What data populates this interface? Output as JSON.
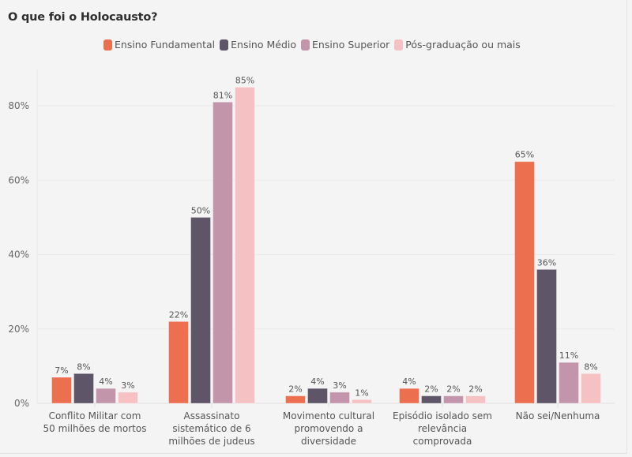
{
  "title": "O que foi o Holocausto?",
  "chart_data": {
    "type": "bar",
    "title": "O que foi o Holocausto?",
    "xlabel": "",
    "ylabel": "",
    "ylim": [
      0,
      88
    ],
    "yticks": [
      0,
      20,
      40,
      60,
      80
    ],
    "ytick_labels": [
      "0%",
      "20%",
      "40%",
      "60%",
      "80%"
    ],
    "grid": true,
    "legend_position": "top-center",
    "categories": [
      [
        "Conflito Militar com",
        "50 milhões de mortos"
      ],
      [
        "Assassinato",
        "sistemático de 6",
        "milhões de judeus"
      ],
      [
        "Movimento cultural",
        "promovendo a",
        "diversidade"
      ],
      [
        "Episódio isolado sem",
        "relevância",
        "comprovada"
      ],
      [
        "Não sei/Nenhuma"
      ]
    ],
    "series": [
      {
        "name": "Ensino Fundamental",
        "color": "#EC6F4F",
        "values": [
          7,
          22,
          2,
          4,
          65
        ]
      },
      {
        "name": "Ensino Médio",
        "color": "#5E5569",
        "values": [
          8,
          50,
          4,
          2,
          36
        ]
      },
      {
        "name": "Ensino Superior",
        "color": "#C295AA",
        "values": [
          4,
          81,
          3,
          2,
          11
        ]
      },
      {
        "name": "Pós-graduação ou mais",
        "color": "#F5C1C2",
        "values": [
          3,
          85,
          1,
          2,
          8
        ]
      }
    ],
    "value_suffix": "%"
  }
}
